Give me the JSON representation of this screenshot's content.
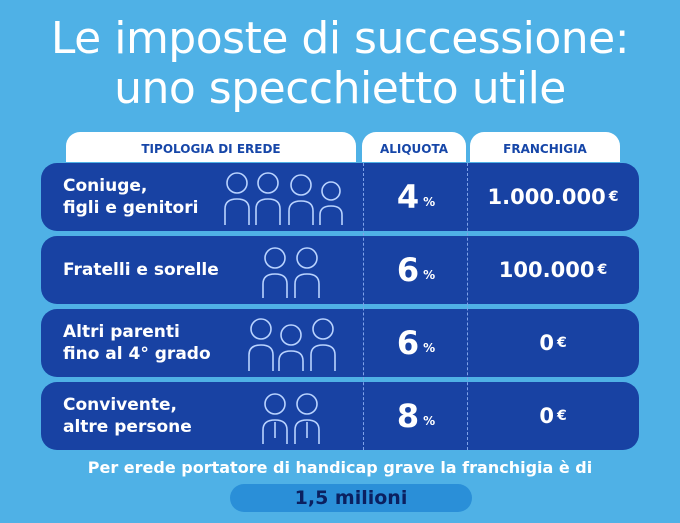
{
  "title": {
    "line1": "Le imposte di successione:",
    "line2": "uno specchietto utile"
  },
  "headers": {
    "type": "TIPOLOGIA DI EREDE",
    "rate": "ALIQUOTA",
    "franchise": "FRANCHIGIA"
  },
  "rows": [
    {
      "label1": "Coniuge,",
      "label2": "figli e genitori",
      "rate": "4",
      "rate_unit": "%",
      "franchise": "1.000.000",
      "currency": "€",
      "icon": "family-four-icon"
    },
    {
      "label1": "Fratelli e  sorelle",
      "label2": "",
      "rate": "6",
      "rate_unit": "%",
      "franchise": "100.000",
      "currency": "€",
      "icon": "siblings-icon"
    },
    {
      "label1": "Altri parenti",
      "label2": "fino al 4° grado",
      "rate": "6",
      "rate_unit": "%",
      "franchise": "0",
      "currency": "€",
      "icon": "relatives-icon"
    },
    {
      "label1": "Convivente,",
      "label2": "altre persone",
      "rate": "8",
      "rate_unit": "%",
      "franchise": "0",
      "currency": "€",
      "icon": "couple-icon"
    }
  ],
  "footer": {
    "note": "Per erede portatore di handicap grave la franchigia è di",
    "highlight": "1,5 milioni"
  },
  "colors": {
    "background": "#4fb1e6",
    "row": "#1842a3",
    "header_text": "#1646a8",
    "pill": "#2a8fd8"
  }
}
